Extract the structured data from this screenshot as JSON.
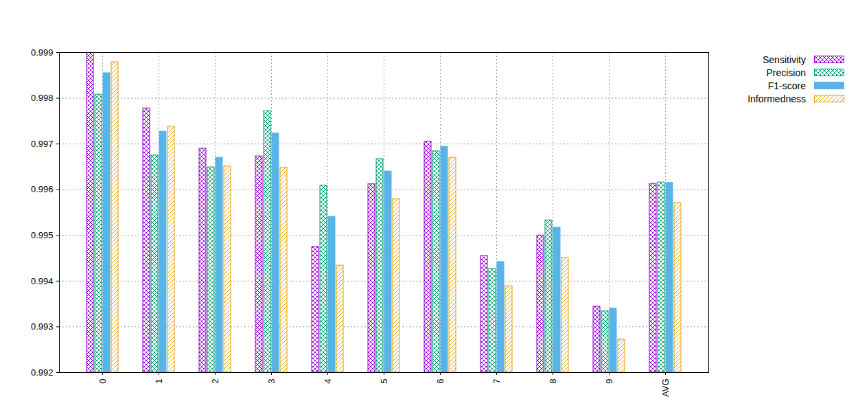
{
  "chart_data": {
    "type": "bar",
    "categories": [
      "0",
      "1",
      "2",
      "3",
      "4",
      "5",
      "6",
      "7",
      "8",
      "9",
      "AVG"
    ],
    "series": [
      {
        "name": "Sensitivity",
        "color": "#9400d3",
        "values": [
          0.999,
          0.99778,
          0.9969,
          0.99673,
          0.99475,
          0.99612,
          0.99705,
          0.99455,
          0.995,
          0.99344,
          0.99613
        ]
      },
      {
        "name": "Precision",
        "color": "#009e73",
        "values": [
          0.99808,
          0.99675,
          0.99649,
          0.99772,
          0.99609,
          0.99667,
          0.99684,
          0.99427,
          0.99533,
          0.99334,
          0.99616
        ]
      },
      {
        "name": "F1-score",
        "color": "#56b4e9",
        "values": [
          0.99855,
          0.99727,
          0.9967,
          0.99723,
          0.99541,
          0.9964,
          0.99694,
          0.99442,
          0.99517,
          0.9934,
          0.99615
        ]
      },
      {
        "name": "Informedness",
        "color": "#e69f00",
        "values": [
          0.99879,
          0.99738,
          0.99651,
          0.99648,
          0.99434,
          0.99579,
          0.9967,
          0.99389,
          0.99451,
          0.99272,
          0.99571
        ]
      }
    ],
    "ylim": [
      0.992,
      0.999
    ],
    "yticks": [
      0.992,
      0.993,
      0.994,
      0.995,
      0.996,
      0.997,
      0.998,
      0.999
    ],
    "grid": true,
    "legend": "top-right"
  }
}
